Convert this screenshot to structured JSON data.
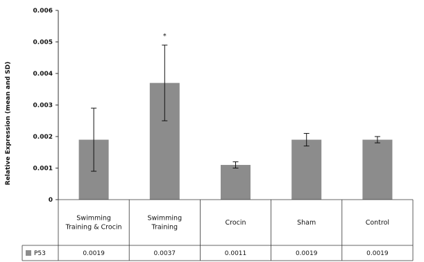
{
  "chart_data": {
    "type": "bar",
    "ylabel": "Relative Expression (mean and SD)",
    "ylim": [
      0,
      0.006
    ],
    "yticks": [
      "0",
      "0.001",
      "0.002",
      "0.003",
      "0.004",
      "0.005",
      "0.006"
    ],
    "grid": false,
    "legend": "table-bottom",
    "categories": [
      [
        "Swimming",
        "Training & Crocin"
      ],
      [
        "Swimming",
        "Training"
      ],
      [
        "Crocin"
      ],
      [
        "Sham"
      ],
      [
        "Control"
      ]
    ],
    "series": [
      {
        "name": "P53",
        "color": "#8c8c8c",
        "values": [
          0.0019,
          0.0037,
          0.0011,
          0.0019,
          0.0019
        ],
        "value_labels": [
          "0.0019",
          "0.0037",
          "0.0011",
          "0.0019",
          "0.0019"
        ],
        "error": [
          0.001,
          0.0012,
          0.0001,
          0.0002,
          0.0001
        ]
      }
    ],
    "annotations": [
      {
        "category_index": 1,
        "text": "*"
      }
    ]
  }
}
